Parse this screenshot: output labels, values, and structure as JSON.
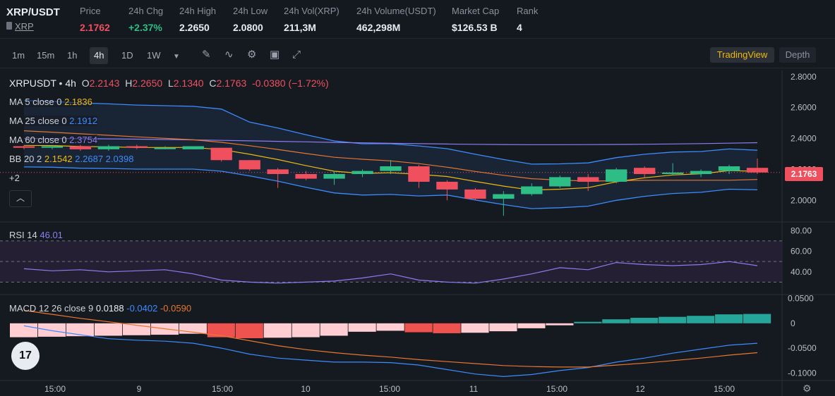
{
  "ticker": {
    "symbol": "XRP/USDT",
    "subtitle": "XRP",
    "stats": [
      {
        "label": "Price",
        "value": "2.1762",
        "color": "red"
      },
      {
        "label": "24h Chg",
        "value": "+2.37%",
        "color": "green"
      },
      {
        "label": "24h High",
        "value": "2.2650",
        "color": "white"
      },
      {
        "label": "24h Low",
        "value": "2.0800",
        "color": "white"
      },
      {
        "label": "24h Vol(XRP)",
        "value": "211,3M",
        "color": "white"
      },
      {
        "label": "24h Volume(USDT)",
        "value": "462,298M",
        "color": "white"
      },
      {
        "label": "Market Cap",
        "value": "$126.53 B",
        "color": "white"
      },
      {
        "label": "Rank",
        "value": "4",
        "color": "white"
      }
    ]
  },
  "toolbar": {
    "timeframes": [
      "1m",
      "15m",
      "1h",
      "4h",
      "1D",
      "1W"
    ],
    "active_timeframe": "4h",
    "tradingview_label": "TradingView",
    "depth_label": "Depth"
  },
  "legend": {
    "pair": "XRPUSDT",
    "interval": "4h",
    "o_label": "O",
    "open": "2.2143",
    "h_label": "H",
    "high": "2.2650",
    "l_label": "L",
    "low": "2.1340",
    "c_label": "C",
    "close": "2.1763",
    "change": "-0.0380 (−1.72%)",
    "ma5_label": "MA 5 close 0",
    "ma5": "2.1836",
    "ma25_label": "MA 25 close 0",
    "ma25": "2.1912",
    "ma60_label": "MA 60 close 0",
    "ma60": "2.3754",
    "bb_label": "BB 20 2",
    "bb_mid": "2.1542",
    "bb_up": "2.2687",
    "bb_low": "2.0398",
    "more": "+2",
    "rsi_label": "RSI 14",
    "rsi": "46.01",
    "macd_label": "MACD 12 26 close 9",
    "macd_hist": "0.0188",
    "macd": "-0.0402",
    "signal": "-0.0590"
  },
  "price_tag": "2.1763",
  "price_axis": [
    "2.8000",
    "2.6000",
    "2.4000",
    "2.2000",
    "2.0000"
  ],
  "rsi_axis": [
    "80.00",
    "60.00",
    "40.00"
  ],
  "macd_axis": [
    "0.0500",
    "0",
    "-0.0500",
    "-0.1000"
  ],
  "time_axis": [
    "15:00",
    "9",
    "15:00",
    "10",
    "15:00",
    "11",
    "15:00",
    "12",
    "15:00"
  ],
  "colors": {
    "up": "#2ebd85",
    "down": "#f0505e",
    "ma5": "#f0b90b",
    "ma25": "#e8762f",
    "ma60": "#8e7cf0",
    "bb": "#3d8bfd"
  },
  "chart_data": {
    "type": "candlestick",
    "candles": [
      {
        "o": 2.35,
        "c": 2.34,
        "h": 2.36,
        "l": 2.33
      },
      {
        "o": 2.34,
        "c": 2.35,
        "h": 2.36,
        "l": 2.33
      },
      {
        "o": 2.35,
        "c": 2.33,
        "h": 2.36,
        "l": 2.32
      },
      {
        "o": 2.33,
        "c": 2.35,
        "h": 2.36,
        "l": 2.32
      },
      {
        "o": 2.35,
        "c": 2.34,
        "h": 2.36,
        "l": 2.33
      },
      {
        "o": 2.34,
        "c": 2.34,
        "h": 2.35,
        "l": 2.33
      },
      {
        "o": 2.33,
        "c": 2.35,
        "h": 2.35,
        "l": 2.33
      },
      {
        "o": 2.34,
        "c": 2.26,
        "h": 2.34,
        "l": 2.25
      },
      {
        "o": 2.26,
        "c": 2.2,
        "h": 2.26,
        "l": 2.19
      },
      {
        "o": 2.2,
        "c": 2.17,
        "h": 2.21,
        "l": 2.08
      },
      {
        "o": 2.17,
        "c": 2.14,
        "h": 2.19,
        "l": 2.13
      },
      {
        "o": 2.14,
        "c": 2.17,
        "h": 2.19,
        "l": 2.1
      },
      {
        "o": 2.17,
        "c": 2.19,
        "h": 2.2,
        "l": 2.15
      },
      {
        "o": 2.19,
        "c": 2.22,
        "h": 2.26,
        "l": 2.17
      },
      {
        "o": 2.22,
        "c": 2.12,
        "h": 2.23,
        "l": 2.08
      },
      {
        "o": 2.12,
        "c": 2.07,
        "h": 2.13,
        "l": 2.0
      },
      {
        "o": 2.07,
        "c": 2.01,
        "h": 2.08,
        "l": 2.0
      },
      {
        "o": 2.01,
        "c": 2.04,
        "h": 2.06,
        "l": 1.9
      },
      {
        "o": 2.04,
        "c": 2.09,
        "h": 2.11,
        "l": 2.03
      },
      {
        "o": 2.09,
        "c": 2.15,
        "h": 2.16,
        "l": 2.08
      },
      {
        "o": 2.15,
        "c": 2.12,
        "h": 2.17,
        "l": 2.06
      },
      {
        "o": 2.12,
        "c": 2.2,
        "h": 2.21,
        "l": 2.11
      },
      {
        "o": 2.21,
        "c": 2.17,
        "h": 2.22,
        "l": 2.15
      },
      {
        "o": 2.17,
        "c": 2.18,
        "h": 2.24,
        "l": 2.16
      },
      {
        "o": 2.17,
        "c": 2.19,
        "h": 2.2,
        "l": 2.15
      },
      {
        "o": 2.19,
        "c": 2.22,
        "h": 2.23,
        "l": 2.17
      },
      {
        "o": 2.21,
        "c": 2.18,
        "h": 2.27,
        "l": 2.17
      }
    ],
    "ylim": [
      1.86,
      2.84
    ],
    "rsi": [
      43,
      41,
      42,
      40,
      41,
      42,
      38,
      32,
      30,
      29,
      30,
      31,
      34,
      38,
      32,
      30,
      29,
      33,
      38,
      44,
      42,
      49,
      47,
      46,
      47,
      50,
      46
    ],
    "rsi_ylim": [
      20,
      85
    ],
    "macd_hist": [
      -0.028,
      -0.027,
      -0.026,
      -0.025,
      -0.024,
      -0.023,
      -0.021,
      -0.028,
      -0.03,
      -0.029,
      -0.028,
      -0.025,
      -0.017,
      -0.015,
      -0.018,
      -0.02,
      -0.019,
      -0.016,
      -0.01,
      -0.004,
      0.003,
      0.008,
      0.011,
      0.013,
      0.015,
      0.018,
      0.0188
    ],
    "macd_line": [
      -0.005,
      -0.015,
      -0.023,
      -0.031,
      -0.034,
      -0.036,
      -0.04,
      -0.05,
      -0.062,
      -0.07,
      -0.074,
      -0.078,
      -0.078,
      -0.079,
      -0.084,
      -0.093,
      -0.102,
      -0.107,
      -0.103,
      -0.095,
      -0.089,
      -0.078,
      -0.07,
      -0.06,
      -0.052,
      -0.044,
      -0.04
    ],
    "signal_line": [
      0.026,
      0.018,
      0.01,
      0.003,
      -0.004,
      -0.011,
      -0.018,
      -0.025,
      -0.035,
      -0.045,
      -0.053,
      -0.059,
      -0.064,
      -0.068,
      -0.073,
      -0.077,
      -0.081,
      -0.085,
      -0.087,
      -0.088,
      -0.088,
      -0.084,
      -0.08,
      -0.075,
      -0.07,
      -0.064,
      -0.059
    ],
    "macd_ylim": [
      -0.115,
      0.055
    ]
  }
}
